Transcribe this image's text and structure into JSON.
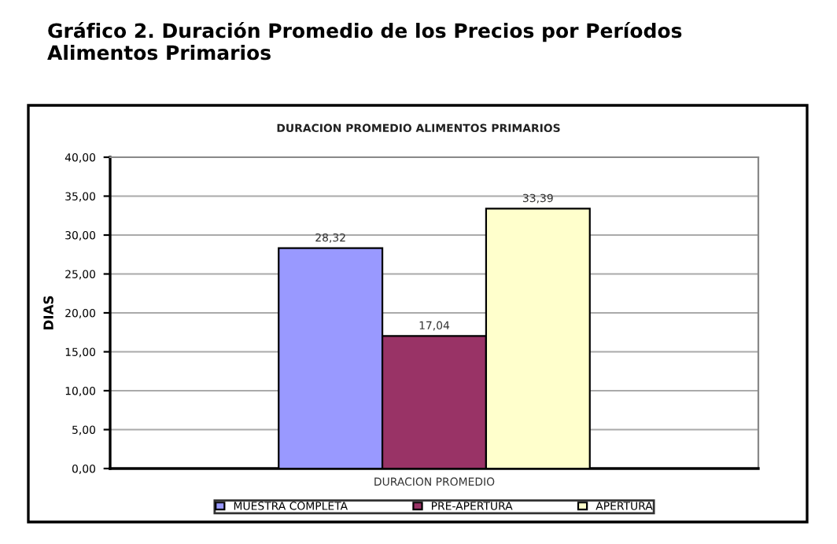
{
  "chart_data": {
    "type": "bar",
    "title": "Gráfico 2. Duración Promedio de los Precios por Períodos\nAlimentos Primarios",
    "subtitle": "DURACION PROMEDIO ALIMENTOS PRIMARIOS",
    "ylabel": "DIAS",
    "categories": [
      "DURACION PROMEDIO"
    ],
    "series": [
      {
        "name": "MUESTRA COMPLETA",
        "color": "#9999ff",
        "values": [
          28.32
        ],
        "value_labels": [
          "28,32"
        ]
      },
      {
        "name": "PRE-APERTURA",
        "color": "#993366",
        "values": [
          17.04
        ],
        "value_labels": [
          "17,04"
        ]
      },
      {
        "name": "APERTURA",
        "color": "#ffffcc",
        "values": [
          33.39
        ],
        "value_labels": [
          "33,39"
        ]
      }
    ],
    "ylim": [
      0,
      40
    ],
    "yticks": [
      {
        "value": 0,
        "label": "0,00"
      },
      {
        "value": 5,
        "label": "5,00"
      },
      {
        "value": 10,
        "label": "10,00"
      },
      {
        "value": 15,
        "label": "15,00"
      },
      {
        "value": 20,
        "label": "20,00"
      },
      {
        "value": 25,
        "label": "25,00"
      },
      {
        "value": 30,
        "label": "30,00"
      },
      {
        "value": 35,
        "label": "35,00"
      },
      {
        "value": 40,
        "label": "40,00"
      }
    ],
    "grid": "y",
    "legend": "bottom"
  }
}
